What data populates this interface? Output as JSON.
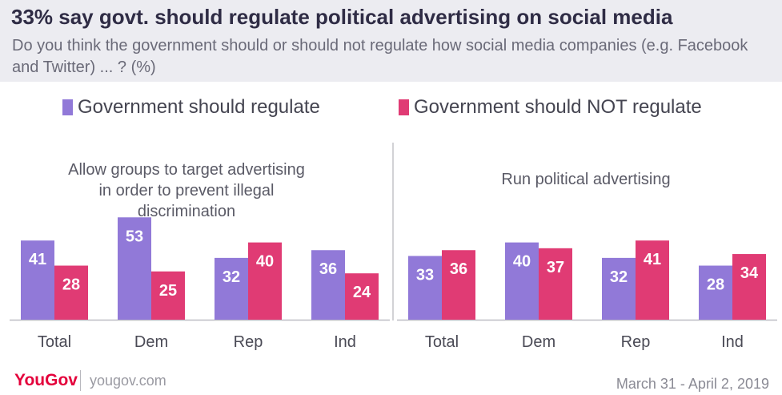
{
  "header": {
    "title": "33% say govt. should regulate political advertising on social media",
    "subtitle": "Do you think the government should or should not regulate how social media companies (e.g. Facebook and Twitter) ... ? (%)"
  },
  "footer": {
    "brand": "YouGov",
    "site": "yougov.com",
    "date": "March 31 - April 2, 2019"
  },
  "colors": {
    "should": "#9179d8",
    "should_not": "#e03b74",
    "text": "#4a4a55",
    "axis": "#bdbdc4"
  },
  "chart_data": [
    {
      "type": "bar",
      "title": "Allow groups to target advertising in order to prevent illegal discrimination",
      "categories": [
        "Total",
        "Dem",
        "Rep",
        "Ind"
      ],
      "series": [
        {
          "name": "Government should regulate",
          "values": [
            41,
            53,
            32,
            36
          ]
        },
        {
          "name": "Government should NOT regulate",
          "values": [
            28,
            25,
            40,
            24
          ]
        }
      ],
      "xlabel": "",
      "ylabel": "",
      "ylim": [
        0,
        60
      ],
      "grid": false,
      "legend": "top"
    },
    {
      "type": "bar",
      "title": "Run political advertising",
      "categories": [
        "Total",
        "Dem",
        "Rep",
        "Ind"
      ],
      "series": [
        {
          "name": "Government should regulate",
          "values": [
            33,
            40,
            32,
            28
          ]
        },
        {
          "name": "Government should NOT regulate",
          "values": [
            36,
            37,
            41,
            34
          ]
        }
      ],
      "xlabel": "",
      "ylabel": "",
      "ylim": [
        0,
        60
      ],
      "grid": false,
      "legend": "top"
    }
  ]
}
